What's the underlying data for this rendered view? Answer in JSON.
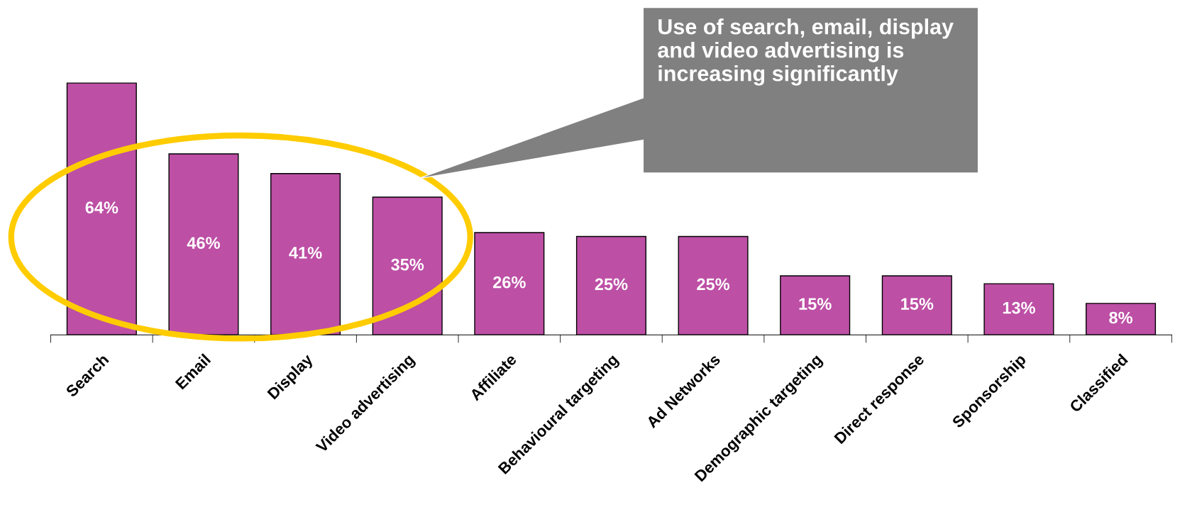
{
  "chart_data": {
    "type": "bar",
    "categories": [
      "Search",
      "Email",
      "Display",
      "Video advertising",
      "Affiliate",
      "Behavioural targeting",
      "Ad Networks",
      "Demographic targeting",
      "Direct response",
      "Sponsorship",
      "Classified"
    ],
    "values": [
      64,
      46,
      41,
      35,
      26,
      25,
      25,
      15,
      15,
      13,
      8
    ],
    "value_labels": [
      "64%",
      "46%",
      "41%",
      "35%",
      "26%",
      "25%",
      "25%",
      "15%",
      "15%",
      "13%",
      "8%"
    ],
    "color": "#bd4fa5",
    "annotations": [
      "Use of search, email, display and video advertising is increasing significantly"
    ],
    "grid": false,
    "legend": false,
    "tick_labels": "x"
  }
}
